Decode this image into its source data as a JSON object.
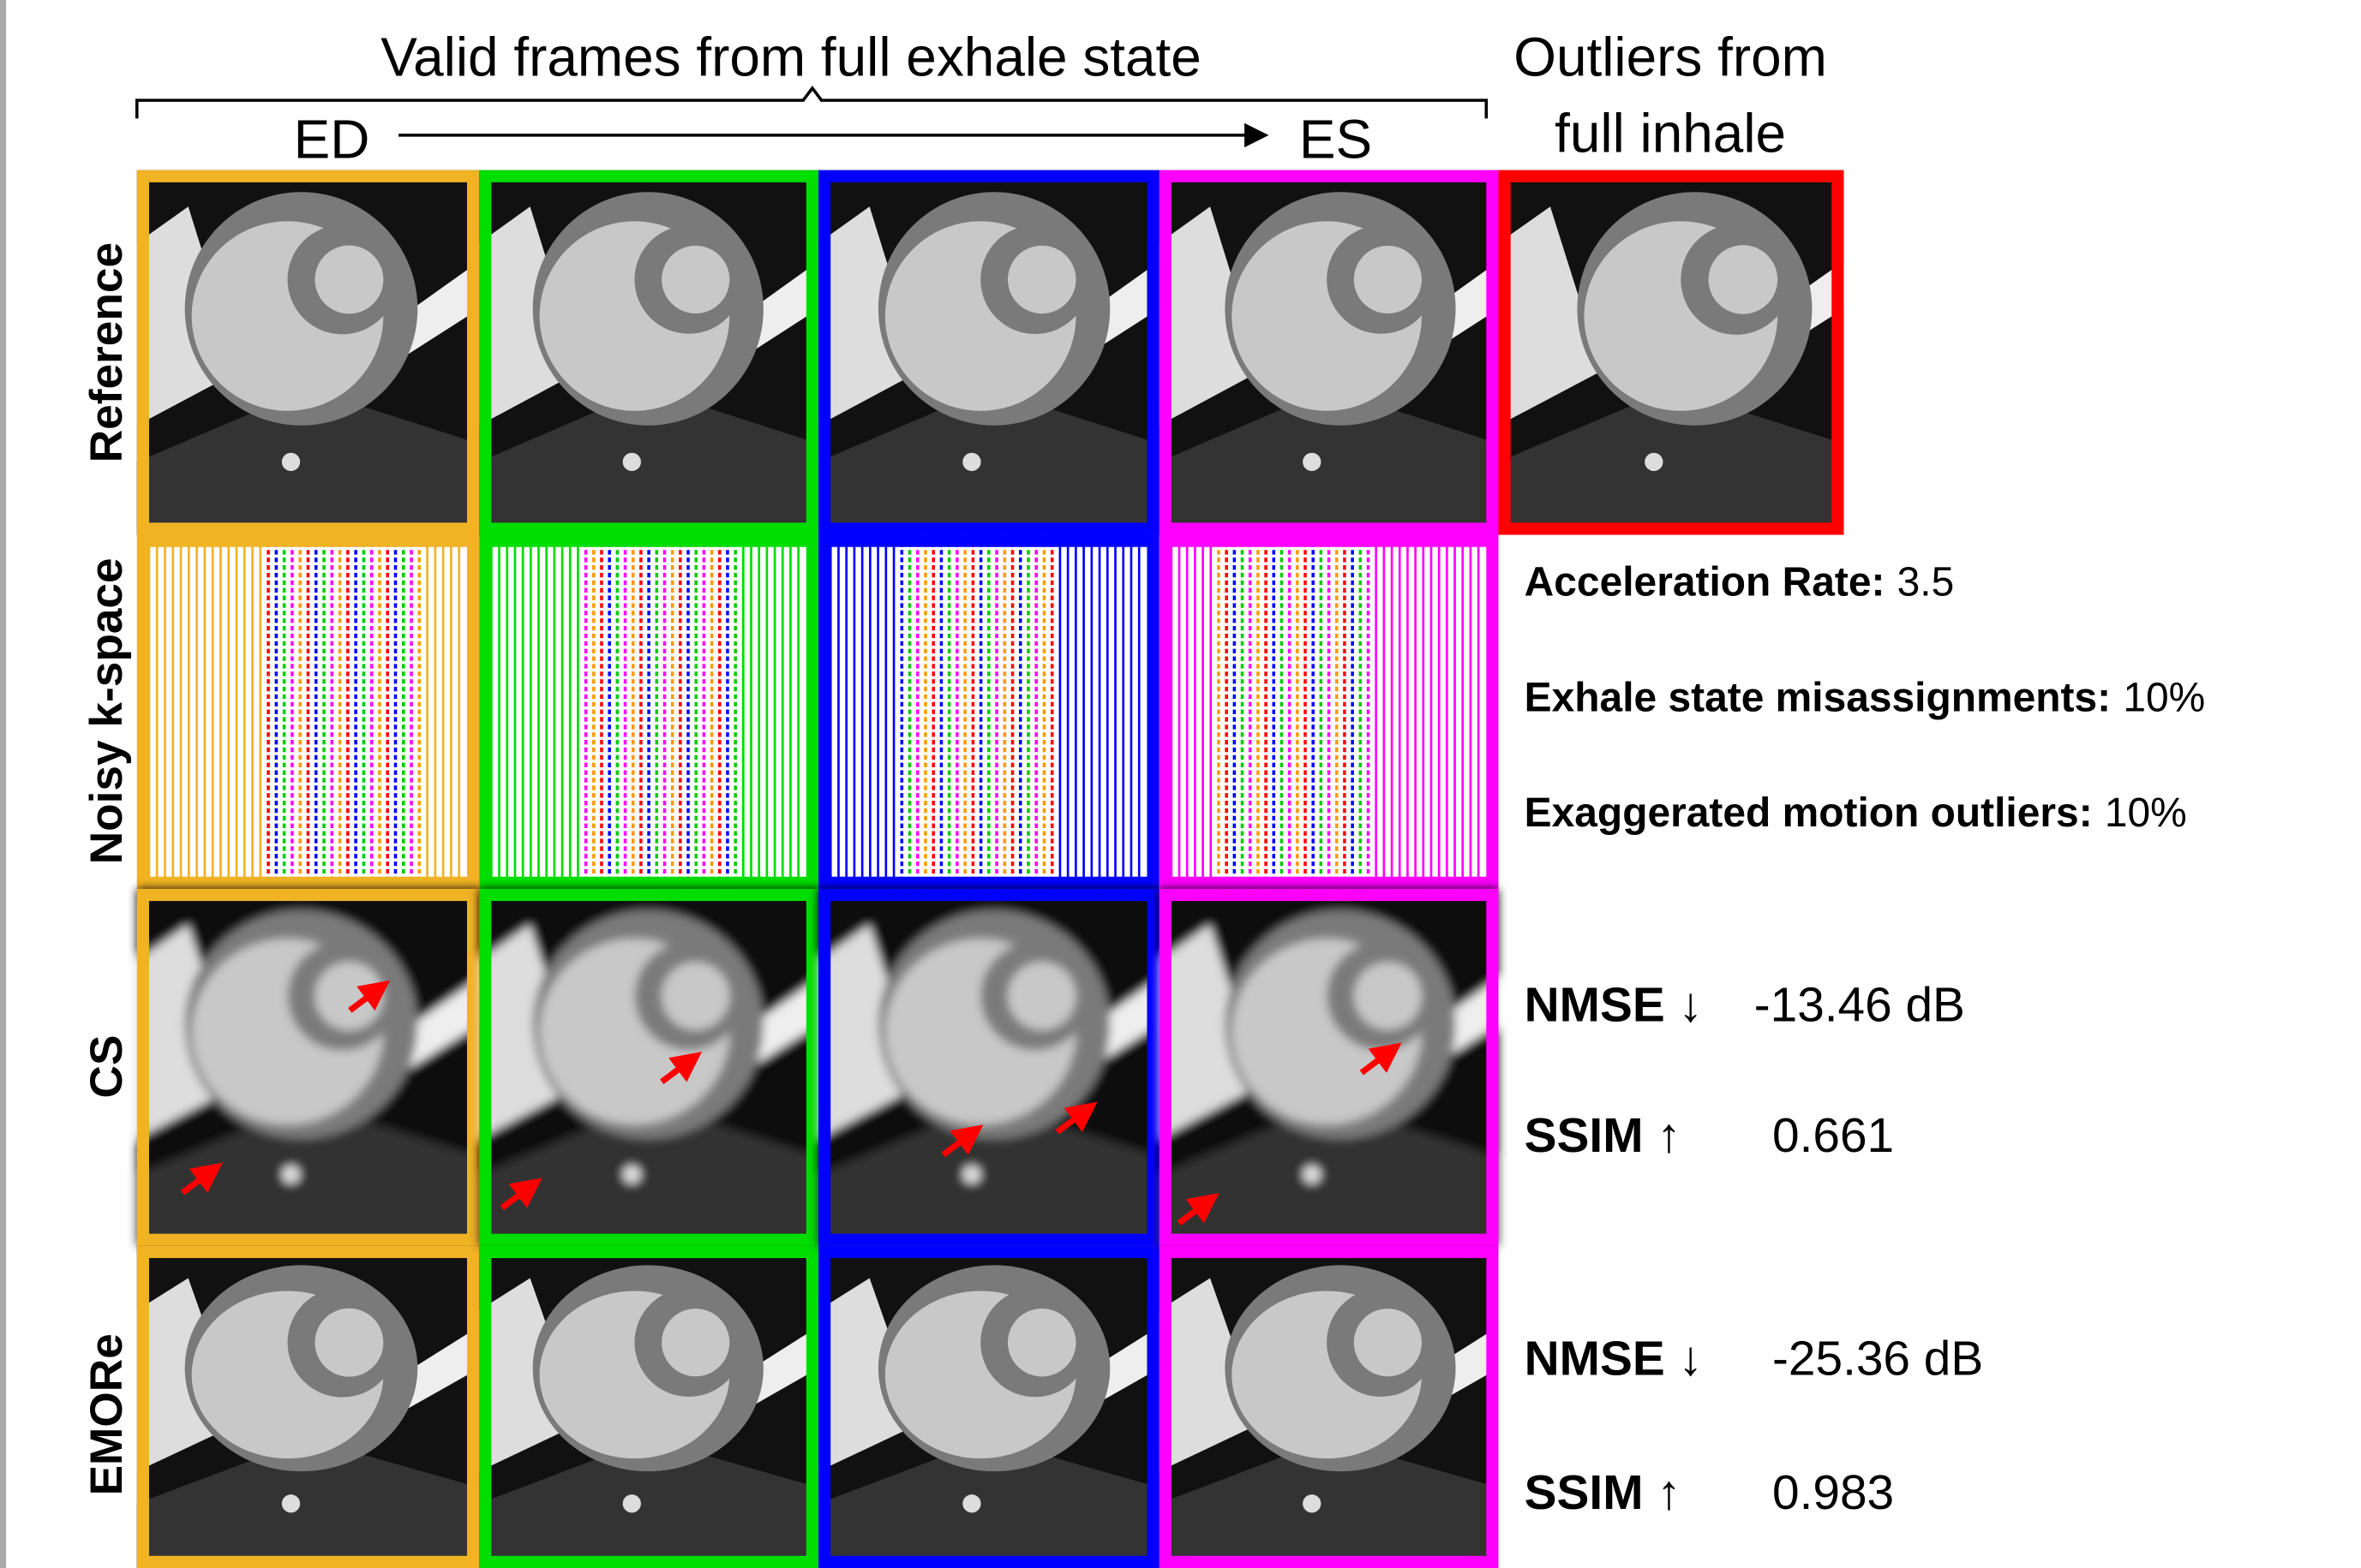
{
  "header": {
    "group_label": "Valid frames from full exhale state",
    "start_label": "ED",
    "end_label": "ES",
    "outlier_label_1": "Outliers from",
    "outlier_label_2": "full inhale"
  },
  "rows": [
    "Reference",
    "Noisy k-space",
    "CS",
    "EMORe"
  ],
  "settings": [
    {
      "label": "Acceleration Rate:",
      "value": "3.5"
    },
    {
      "label": "Exhale state misassignments:",
      "value": "10%"
    },
    {
      "label": "Exaggerated motion outliers:",
      "value": "10%"
    }
  ],
  "cs_metrics": [
    {
      "label": "NMSE ↓",
      "value": "-13.46 dB"
    },
    {
      "label": "SSIM ↑",
      "value": "0.661"
    }
  ],
  "emore_metrics": [
    {
      "label": "NMSE ↓",
      "value": "-25.36 dB"
    },
    {
      "label": "SSIM ↑",
      "value": "0.983"
    }
  ]
}
